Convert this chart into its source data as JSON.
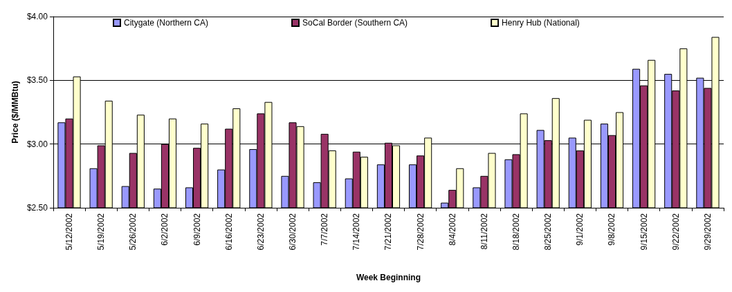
{
  "chart_data": {
    "type": "bar",
    "xlabel": "Week Beginning",
    "ylabel": "Price ($/MMBtu)",
    "categories": [
      "5/12/2002",
      "5/19/2002",
      "5/26/2002",
      "6/2/2002",
      "6/9/2002",
      "6/16/2002",
      "6/23/2002",
      "6/30/2002",
      "7/7/2002",
      "7/14/2002",
      "7/21/2002",
      "7/28/2002",
      "8/4/2002",
      "8/11/2002",
      "8/18/2002",
      "8/25/2002",
      "9/1/2002",
      "9/8/2002",
      "9/15/2002",
      "9/22/2002",
      "9/29/2002"
    ],
    "series": [
      {
        "name": "Citygate (Northern CA)",
        "color": "#9999ff",
        "values": [
          3.17,
          2.81,
          2.67,
          2.65,
          2.66,
          2.8,
          2.96,
          2.75,
          2.7,
          2.73,
          2.84,
          2.84,
          2.54,
          2.66,
          2.88,
          3.11,
          3.05,
          3.16,
          3.59,
          3.55,
          3.52
        ]
      },
      {
        "name": "SoCal Border (Southern CA)",
        "color": "#993366",
        "values": [
          3.2,
          2.99,
          2.93,
          3.0,
          2.97,
          3.12,
          3.24,
          3.17,
          3.08,
          2.94,
          3.01,
          2.91,
          2.64,
          2.75,
          2.92,
          3.03,
          2.95,
          3.07,
          3.46,
          3.42,
          3.44
        ]
      },
      {
        "name": "Henry Hub (National)",
        "color": "#ffffcc",
        "values": [
          3.53,
          3.34,
          3.23,
          3.2,
          3.16,
          3.28,
          3.33,
          3.14,
          2.95,
          2.9,
          2.99,
          3.05,
          2.81,
          2.93,
          3.24,
          3.36,
          3.19,
          3.25,
          3.66,
          3.75,
          3.84
        ]
      }
    ],
    "ylim": [
      2.5,
      4
    ],
    "yticks": [
      {
        "value": 2.5,
        "label": "$2.50"
      },
      {
        "value": 3,
        "label": "$3.00"
      },
      {
        "value": 3.5,
        "label": "$3.50"
      },
      {
        "value": 4,
        "label": "$4.00"
      }
    ],
    "grid": "y",
    "legend": "top"
  }
}
